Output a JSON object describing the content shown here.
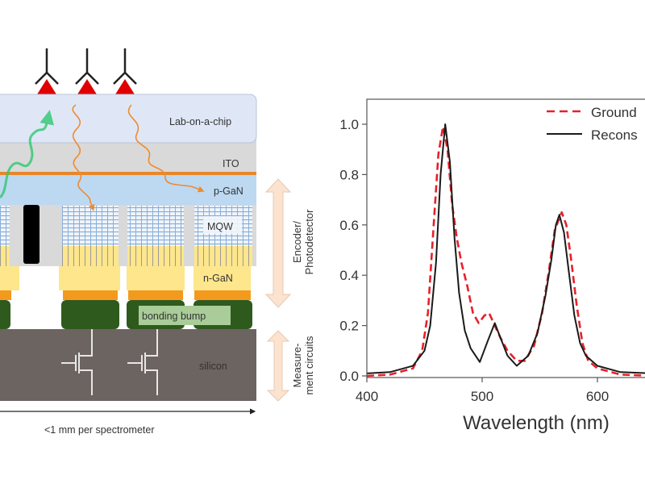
{
  "diagram": {
    "layers": {
      "lab_on_chip": "Lab-on-a-chip",
      "ito": "ITO",
      "p_gan": "p-GaN",
      "mqw": "MQW",
      "n_gan": "n-GaN",
      "bonding_bump": "bonding bump",
      "silicon": "silicon"
    },
    "side_labels": {
      "encoder_line1": "Encoder/",
      "encoder_line2": "Photodetector",
      "measure_line1": "Measure-",
      "measure_line2": "ment circuits"
    },
    "scale_label": "<1 mm per spectrometer",
    "colors": {
      "lab_on_chip": "#dfe7f6",
      "ito": "#d9d9d9",
      "p_gan": "#bdd8f1",
      "n_gan": "#fde68c",
      "contact": "#f39a1e",
      "bump": "#2f5a1e",
      "silicon": "#6c6461",
      "antigen": "#e00000",
      "green_light": "#2ec870",
      "orange_light": "#f08a30",
      "side_arrow": "#fbe3d0"
    }
  },
  "chart_data": {
    "type": "line",
    "xlabel": "Wavelength (nm)",
    "ylabel": "",
    "xlim": [
      400,
      648
    ],
    "ylim": [
      -0.01,
      1.1
    ],
    "xticks": [
      "400",
      "500",
      "600"
    ],
    "yticks": [
      "0.0",
      "0.2",
      "0.4",
      "0.6",
      "0.8",
      "1.0"
    ],
    "grid": false,
    "legend_position": "top-right",
    "series": [
      {
        "name": "Ground",
        "style": "dashed",
        "color": "#e8202a",
        "x": [
          400,
          420,
          440,
          448,
          453,
          458,
          462,
          466,
          470,
          474,
          478,
          482,
          487,
          492,
          497,
          502,
          506,
          511,
          516,
          522,
          530,
          537,
          545,
          552,
          558,
          563,
          569,
          573,
          577,
          582,
          587,
          592,
          600,
          620,
          648
        ],
        "y": [
          0.0,
          0.005,
          0.03,
          0.1,
          0.25,
          0.6,
          0.88,
          0.99,
          0.9,
          0.68,
          0.55,
          0.45,
          0.36,
          0.25,
          0.21,
          0.24,
          0.25,
          0.2,
          0.15,
          0.1,
          0.06,
          0.06,
          0.12,
          0.25,
          0.42,
          0.58,
          0.65,
          0.6,
          0.47,
          0.28,
          0.13,
          0.06,
          0.03,
          0.005,
          0.0
        ]
      },
      {
        "name": "Recons",
        "style": "solid",
        "color": "#1a1a1a",
        "x": [
          400,
          420,
          440,
          450,
          455,
          460,
          464,
          468,
          472,
          476,
          480,
          485,
          490,
          498,
          505,
          511,
          516,
          522,
          530,
          540,
          548,
          555,
          560,
          564,
          567,
          571,
          575,
          580,
          585,
          590,
          600,
          620,
          648
        ],
        "y": [
          0.01,
          0.015,
          0.04,
          0.1,
          0.2,
          0.45,
          0.8,
          1.0,
          0.85,
          0.55,
          0.33,
          0.18,
          0.11,
          0.055,
          0.14,
          0.21,
          0.15,
          0.08,
          0.04,
          0.08,
          0.17,
          0.32,
          0.46,
          0.6,
          0.64,
          0.57,
          0.42,
          0.24,
          0.13,
          0.08,
          0.04,
          0.015,
          0.01
        ]
      }
    ]
  }
}
